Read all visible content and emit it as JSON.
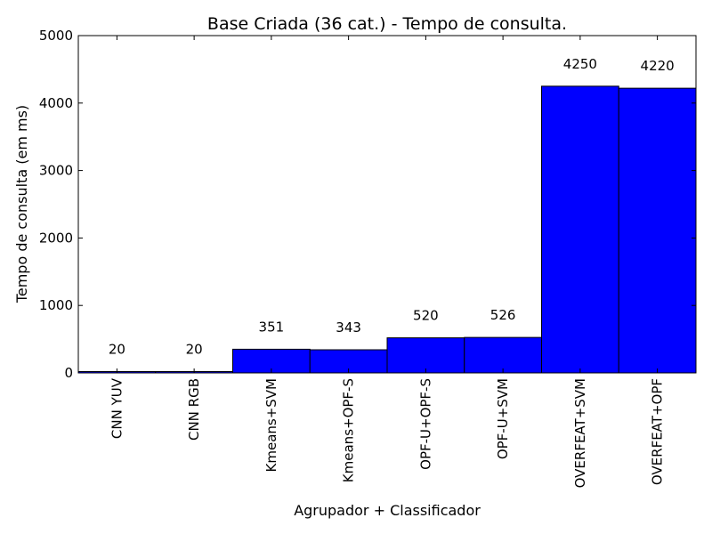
{
  "chart_data": {
    "type": "bar",
    "title": "Base Criada (36 cat.) - Tempo de consulta.",
    "xlabel": "Agrupador + Classificador",
    "ylabel": "Tempo de consulta (em ms)",
    "categories": [
      "CNN YUV",
      "CNN RGB",
      "Kmeans+SVM",
      "Kmeans+OPF-S",
      "OPF-U+OPF-S",
      "OPF-U+SVM",
      "OVERFEAT+SVM",
      "OVERFEAT+OPF"
    ],
    "values": [
      20,
      20,
      351,
      343,
      520,
      526,
      4250,
      4220
    ],
    "ylim": [
      0,
      5000
    ],
    "yticks": [
      0,
      1000,
      2000,
      3000,
      4000,
      5000
    ],
    "bar_color": "#0000ff",
    "grid": false,
    "legend": "none"
  }
}
